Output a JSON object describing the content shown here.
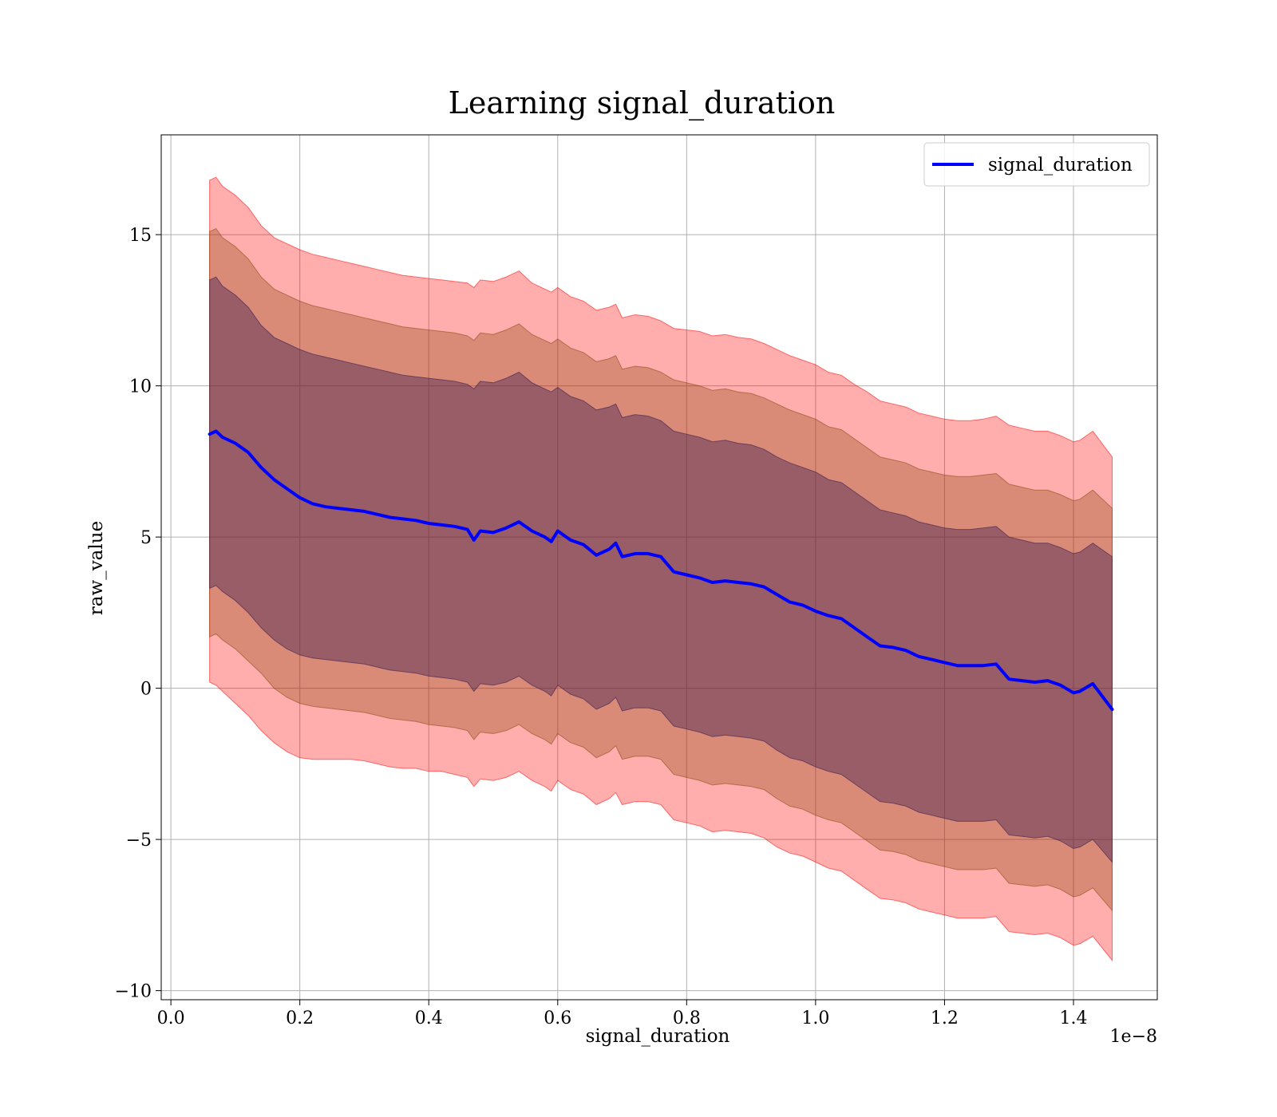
{
  "chart_data": {
    "type": "line",
    "title": "Learning signal_duration",
    "xlabel": "signal_duration",
    "ylabel": "raw_value",
    "x_offset_label": "1e−8",
    "xlim": [
      -0.015,
      1.53
    ],
    "ylim": [
      -10.3,
      18.3
    ],
    "x_ticks": [
      0.0,
      0.2,
      0.4,
      0.6,
      0.8,
      1.0,
      1.2,
      1.4
    ],
    "x_tick_labels": [
      "0.0",
      "0.2",
      "0.4",
      "0.6",
      "0.8",
      "1.0",
      "1.2",
      "1.4"
    ],
    "y_ticks": [
      -10,
      -5,
      0,
      5,
      10,
      15
    ],
    "y_tick_labels": [
      "−10",
      "−5",
      "0",
      "5",
      "10",
      "15"
    ],
    "grid": true,
    "legend_position": "top-right",
    "series": [
      {
        "name": "signal_duration",
        "color": "#0000ff",
        "x": [
          0.06,
          0.07,
          0.08,
          0.1,
          0.12,
          0.14,
          0.16,
          0.18,
          0.2,
          0.22,
          0.24,
          0.26,
          0.28,
          0.3,
          0.32,
          0.34,
          0.36,
          0.38,
          0.4,
          0.42,
          0.44,
          0.46,
          0.47,
          0.48,
          0.5,
          0.52,
          0.54,
          0.56,
          0.58,
          0.59,
          0.6,
          0.62,
          0.64,
          0.66,
          0.68,
          0.69,
          0.7,
          0.72,
          0.74,
          0.76,
          0.78,
          0.8,
          0.82,
          0.84,
          0.86,
          0.88,
          0.9,
          0.92,
          0.94,
          0.96,
          0.98,
          1.0,
          1.02,
          1.04,
          1.06,
          1.08,
          1.1,
          1.12,
          1.14,
          1.16,
          1.18,
          1.2,
          1.22,
          1.24,
          1.26,
          1.28,
          1.3,
          1.32,
          1.34,
          1.36,
          1.38,
          1.4,
          1.41,
          1.43,
          1.46
        ],
        "values": [
          8.4,
          8.5,
          8.3,
          8.1,
          7.8,
          7.3,
          6.9,
          6.6,
          6.3,
          6.1,
          6.0,
          5.95,
          5.9,
          5.85,
          5.75,
          5.65,
          5.6,
          5.55,
          5.45,
          5.4,
          5.35,
          5.25,
          4.9,
          5.2,
          5.15,
          5.3,
          5.5,
          5.2,
          5.0,
          4.85,
          5.2,
          4.9,
          4.75,
          4.4,
          4.6,
          4.8,
          4.35,
          4.45,
          4.45,
          4.35,
          3.85,
          3.75,
          3.65,
          3.5,
          3.55,
          3.5,
          3.45,
          3.35,
          3.1,
          2.85,
          2.75,
          2.55,
          2.4,
          2.3,
          2.0,
          1.7,
          1.4,
          1.35,
          1.25,
          1.05,
          0.95,
          0.85,
          0.75,
          0.75,
          0.75,
          0.8,
          0.3,
          0.25,
          0.2,
          0.25,
          0.1,
          -0.15,
          -0.1,
          0.15,
          -0.7
        ]
      }
    ],
    "bands": [
      {
        "color": "#ff0000",
        "opacity": 0.32,
        "upper": [
          16.8,
          16.9,
          16.6,
          16.3,
          15.9,
          15.3,
          14.9,
          14.7,
          14.5,
          14.35,
          14.25,
          14.15,
          14.05,
          13.95,
          13.85,
          13.75,
          13.65,
          13.6,
          13.55,
          13.5,
          13.45,
          13.4,
          13.25,
          13.5,
          13.45,
          13.6,
          13.8,
          13.4,
          13.2,
          13.1,
          13.25,
          12.95,
          12.8,
          12.5,
          12.6,
          12.7,
          12.25,
          12.35,
          12.3,
          12.15,
          11.9,
          11.85,
          11.8,
          11.65,
          11.7,
          11.6,
          11.55,
          11.4,
          11.2,
          11.0,
          10.85,
          10.7,
          10.45,
          10.35,
          10.05,
          9.8,
          9.5,
          9.4,
          9.3,
          9.1,
          9.0,
          8.9,
          8.85,
          8.85,
          8.9,
          9.0,
          8.7,
          8.6,
          8.5,
          8.5,
          8.35,
          8.15,
          8.2,
          8.5,
          7.65
        ],
        "lower": [
          0.2,
          0.1,
          -0.1,
          -0.5,
          -0.9,
          -1.4,
          -1.8,
          -2.1,
          -2.3,
          -2.35,
          -2.35,
          -2.35,
          -2.35,
          -2.4,
          -2.5,
          -2.6,
          -2.65,
          -2.65,
          -2.75,
          -2.75,
          -2.85,
          -2.95,
          -3.25,
          -3.0,
          -3.05,
          -2.95,
          -2.75,
          -3.05,
          -3.25,
          -3.4,
          -3.05,
          -3.35,
          -3.5,
          -3.85,
          -3.65,
          -3.45,
          -3.85,
          -3.75,
          -3.75,
          -3.85,
          -4.35,
          -4.45,
          -4.55,
          -4.75,
          -4.7,
          -4.75,
          -4.8,
          -4.95,
          -5.25,
          -5.45,
          -5.55,
          -5.75,
          -5.95,
          -6.05,
          -6.35,
          -6.65,
          -6.95,
          -7.0,
          -7.1,
          -7.3,
          -7.4,
          -7.5,
          -7.6,
          -7.6,
          -7.6,
          -7.55,
          -8.05,
          -8.1,
          -8.15,
          -8.1,
          -8.25,
          -8.5,
          -8.45,
          -8.2,
          -9.0
        ]
      },
      {
        "color": "#804000",
        "opacity": 0.3,
        "upper": [
          15.1,
          15.2,
          14.9,
          14.6,
          14.2,
          13.6,
          13.2,
          13.0,
          12.8,
          12.65,
          12.55,
          12.45,
          12.35,
          12.25,
          12.15,
          12.05,
          11.95,
          11.9,
          11.85,
          11.8,
          11.75,
          11.65,
          11.5,
          11.75,
          11.7,
          11.85,
          12.05,
          11.7,
          11.5,
          11.4,
          11.55,
          11.25,
          11.1,
          10.8,
          10.9,
          11.0,
          10.55,
          10.65,
          10.6,
          10.45,
          10.2,
          10.1,
          10.0,
          9.85,
          9.9,
          9.8,
          9.75,
          9.6,
          9.4,
          9.2,
          9.05,
          8.9,
          8.65,
          8.55,
          8.25,
          7.95,
          7.65,
          7.55,
          7.45,
          7.25,
          7.15,
          7.05,
          7.0,
          7.0,
          7.05,
          7.1,
          6.75,
          6.65,
          6.55,
          6.55,
          6.4,
          6.2,
          6.25,
          6.55,
          5.95
        ],
        "lower": [
          1.7,
          1.8,
          1.6,
          1.3,
          0.9,
          0.5,
          0.0,
          -0.3,
          -0.5,
          -0.6,
          -0.65,
          -0.7,
          -0.75,
          -0.8,
          -0.9,
          -1.0,
          -1.05,
          -1.1,
          -1.2,
          -1.25,
          -1.3,
          -1.4,
          -1.7,
          -1.45,
          -1.5,
          -1.4,
          -1.2,
          -1.5,
          -1.7,
          -1.85,
          -1.5,
          -1.8,
          -1.95,
          -2.3,
          -2.1,
          -1.9,
          -2.35,
          -2.25,
          -2.25,
          -2.35,
          -2.85,
          -2.95,
          -3.05,
          -3.2,
          -3.15,
          -3.2,
          -3.25,
          -3.35,
          -3.65,
          -3.9,
          -4.0,
          -4.2,
          -4.35,
          -4.45,
          -4.75,
          -5.05,
          -5.35,
          -5.4,
          -5.5,
          -5.7,
          -5.8,
          -5.9,
          -6.0,
          -6.0,
          -6.0,
          -5.95,
          -6.45,
          -6.5,
          -6.55,
          -6.5,
          -6.65,
          -6.9,
          -6.85,
          -6.6,
          -7.35
        ]
      },
      {
        "color": "#402050",
        "opacity": 0.42,
        "upper": [
          13.5,
          13.6,
          13.3,
          13.0,
          12.6,
          12.0,
          11.6,
          11.4,
          11.2,
          11.05,
          10.95,
          10.85,
          10.75,
          10.65,
          10.55,
          10.45,
          10.35,
          10.3,
          10.25,
          10.2,
          10.15,
          10.05,
          9.9,
          10.15,
          10.1,
          10.25,
          10.45,
          10.1,
          9.9,
          9.8,
          9.95,
          9.65,
          9.5,
          9.2,
          9.3,
          9.4,
          8.95,
          9.05,
          9.0,
          8.85,
          8.5,
          8.4,
          8.3,
          8.15,
          8.2,
          8.1,
          8.05,
          7.9,
          7.65,
          7.45,
          7.3,
          7.15,
          6.9,
          6.8,
          6.5,
          6.2,
          5.9,
          5.8,
          5.7,
          5.5,
          5.4,
          5.3,
          5.25,
          5.25,
          5.3,
          5.35,
          5.0,
          4.9,
          4.8,
          4.8,
          4.65,
          4.45,
          4.5,
          4.8,
          4.35
        ],
        "lower": [
          3.3,
          3.4,
          3.2,
          2.9,
          2.5,
          2.0,
          1.6,
          1.3,
          1.1,
          1.0,
          0.95,
          0.9,
          0.85,
          0.8,
          0.7,
          0.6,
          0.55,
          0.5,
          0.4,
          0.35,
          0.3,
          0.2,
          -0.1,
          0.15,
          0.1,
          0.2,
          0.4,
          0.1,
          -0.1,
          -0.25,
          0.1,
          -0.2,
          -0.35,
          -0.7,
          -0.5,
          -0.3,
          -0.75,
          -0.65,
          -0.65,
          -0.75,
          -1.25,
          -1.35,
          -1.45,
          -1.6,
          -1.55,
          -1.6,
          -1.65,
          -1.75,
          -2.05,
          -2.3,
          -2.4,
          -2.6,
          -2.75,
          -2.85,
          -3.15,
          -3.45,
          -3.75,
          -3.8,
          -3.9,
          -4.1,
          -4.2,
          -4.3,
          -4.4,
          -4.4,
          -4.4,
          -4.35,
          -4.85,
          -4.9,
          -4.95,
          -4.9,
          -5.05,
          -5.3,
          -5.25,
          -5.0,
          -5.75
        ]
      }
    ]
  }
}
